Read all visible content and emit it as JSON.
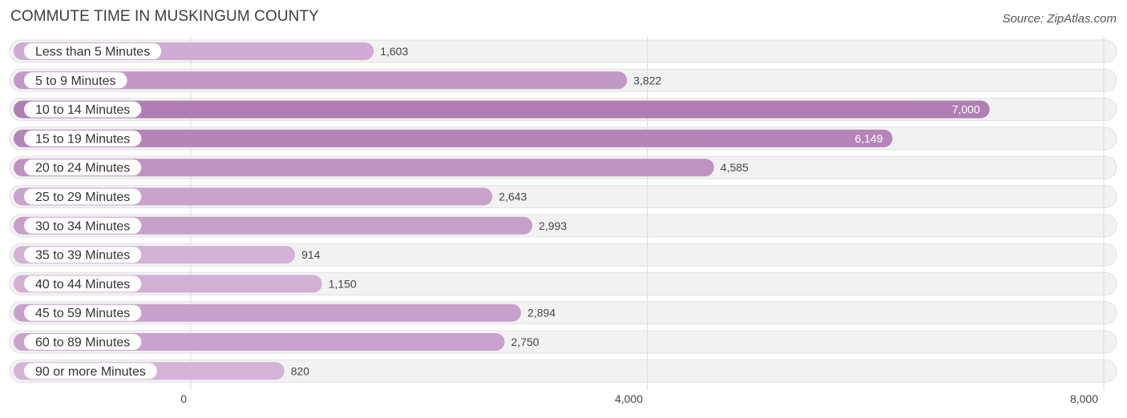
{
  "chart_data": {
    "type": "bar",
    "orientation": "horizontal",
    "title": "COMMUTE TIME IN MUSKINGUM COUNTY",
    "source": "Source: ZipAtlas.com",
    "categories": [
      "Less than 5 Minutes",
      "5 to 9 Minutes",
      "10 to 14 Minutes",
      "15 to 19 Minutes",
      "20 to 24 Minutes",
      "25 to 29 Minutes",
      "30 to 34 Minutes",
      "35 to 39 Minutes",
      "40 to 44 Minutes",
      "45 to 59 Minutes",
      "60 to 89 Minutes",
      "90 or more Minutes"
    ],
    "values": [
      1603,
      3822,
      7000,
      6149,
      4585,
      2643,
      2993,
      914,
      1150,
      2894,
      2750,
      820
    ],
    "value_labels": [
      "1,603",
      "3,822",
      "7,000",
      "6,149",
      "4,585",
      "2,643",
      "2,993",
      "914",
      "1,150",
      "2,894",
      "2,750",
      "820"
    ],
    "xlim": [
      0,
      8000
    ],
    "xticks": [
      0,
      4000,
      8000
    ],
    "xtick_labels": [
      "0",
      "4,000",
      "8,000"
    ],
    "grid": true,
    "colors": {
      "bar_max": "#b07eb5",
      "bar_min": "#d3b3d6"
    }
  }
}
